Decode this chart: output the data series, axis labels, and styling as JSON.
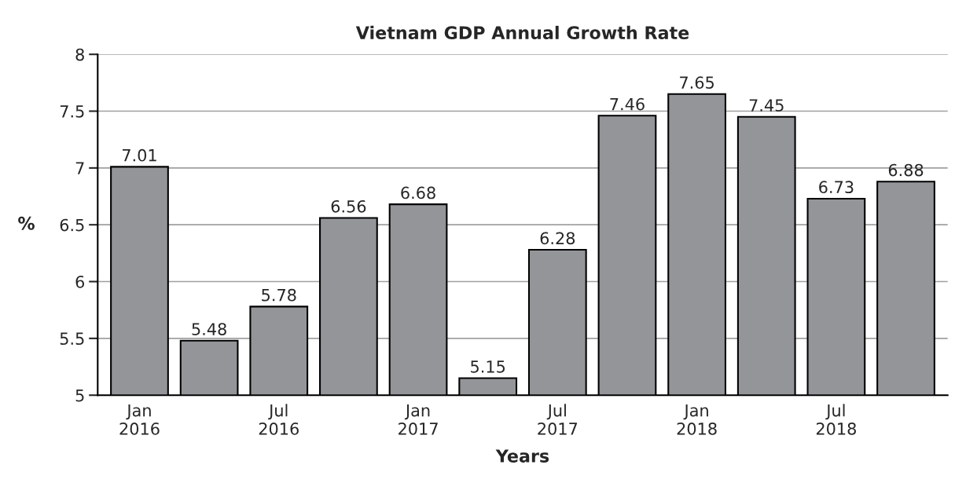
{
  "chart_data": {
    "type": "bar",
    "title": "Vietnam GDP Annual Growth Rate",
    "xlabel": "Years",
    "ylabel": "%",
    "categories": [
      "Jan\n2016",
      null,
      "Jul\n2016",
      null,
      "Jan\n2017",
      null,
      "Jul\n2017",
      null,
      "Jan\n2018",
      null,
      "Jul\n2018",
      null
    ],
    "values": [
      7.01,
      5.48,
      5.78,
      6.56,
      6.68,
      5.15,
      6.28,
      7.46,
      7.65,
      7.45,
      6.73,
      6.88
    ],
    "color": "#939598",
    "ylim": [
      5,
      8
    ],
    "yticks": [
      5,
      5.5,
      6,
      6.5,
      7,
      7.5,
      8
    ],
    "grid": "y",
    "data_labels": true,
    "legend": false
  }
}
